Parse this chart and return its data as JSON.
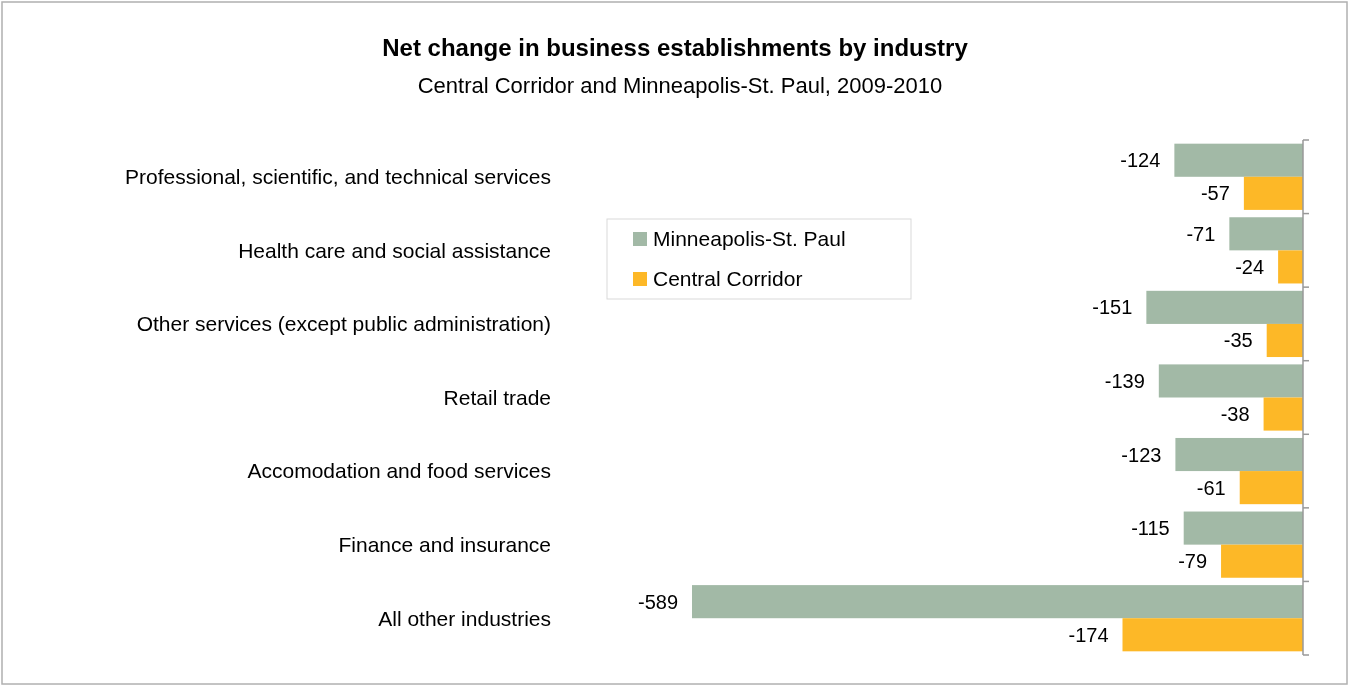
{
  "chart_data": {
    "type": "bar",
    "orientation": "horizontal",
    "title": "Net change in business establishments by industry",
    "subtitle": "Central Corridor and Minneapolis-St. Paul, 2009-2010",
    "categories": [
      "Professional, scientific, and technical services",
      "Health care and social assistance",
      "Other services (except public administration)",
      "Retail trade",
      "Accomodation and food services",
      "Finance and insurance",
      "All other industries"
    ],
    "series": [
      {
        "name": "Minneapolis-St. Paul",
        "color": "#a2b9a6",
        "values": [
          -124,
          -71,
          -151,
          -139,
          -123,
          -115,
          -589
        ]
      },
      {
        "name": "Central Corridor",
        "color": "#fdb827",
        "values": [
          -57,
          -24,
          -35,
          -38,
          -61,
          -79,
          -174
        ]
      }
    ],
    "data_labels": true,
    "legend": "top left"
  }
}
